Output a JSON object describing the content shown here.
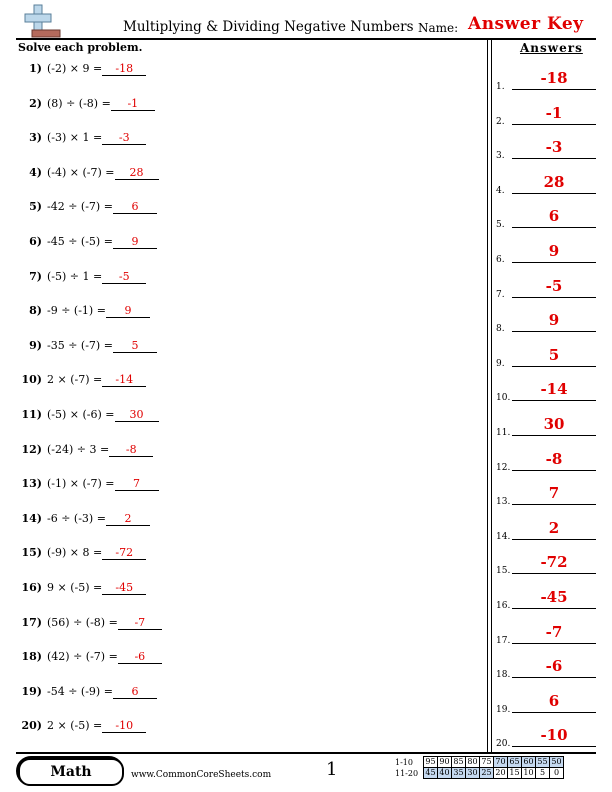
{
  "header": {
    "title": "Multiplying & Dividing Negative Numbers",
    "name_label": "Name:",
    "answer_key": "Answer Key",
    "logo_icon": "plus-minus-logo-icon"
  },
  "instructions": "Solve each problem.",
  "problems": [
    {
      "num": "1)",
      "expr": "(-2) × 9 =",
      "answer": "-18"
    },
    {
      "num": "2)",
      "expr": "(8) ÷ (-8) =",
      "answer": "-1"
    },
    {
      "num": "3)",
      "expr": "(-3) × 1 =",
      "answer": "-3"
    },
    {
      "num": "4)",
      "expr": "(-4) × (-7) =",
      "answer": "28"
    },
    {
      "num": "5)",
      "expr": "-42 ÷ (-7) =",
      "answer": "6"
    },
    {
      "num": "6)",
      "expr": "-45 ÷ (-5) =",
      "answer": "9"
    },
    {
      "num": "7)",
      "expr": "(-5) ÷ 1 =",
      "answer": "-5"
    },
    {
      "num": "8)",
      "expr": "-9 ÷ (-1) =",
      "answer": "9"
    },
    {
      "num": "9)",
      "expr": "-35 ÷ (-7) =",
      "answer": "5"
    },
    {
      "num": "10)",
      "expr": "2 × (-7) =",
      "answer": "-14"
    },
    {
      "num": "11)",
      "expr": "(-5) × (-6) =",
      "answer": "30"
    },
    {
      "num": "12)",
      "expr": "(-24) ÷ 3 =",
      "answer": "-8"
    },
    {
      "num": "13)",
      "expr": "(-1) × (-7) =",
      "answer": "7"
    },
    {
      "num": "14)",
      "expr": "-6 ÷ (-3) =",
      "answer": "2"
    },
    {
      "num": "15)",
      "expr": "(-9) × 8 =",
      "answer": "-72"
    },
    {
      "num": "16)",
      "expr": "9 × (-5) =",
      "answer": "-45"
    },
    {
      "num": "17)",
      "expr": "(56) ÷ (-8) =",
      "answer": "-7"
    },
    {
      "num": "18)",
      "expr": "(42) ÷ (-7) =",
      "answer": "-6"
    },
    {
      "num": "19)",
      "expr": "-54 ÷ (-9) =",
      "answer": "6"
    },
    {
      "num": "20)",
      "expr": "2 × (-5) =",
      "answer": "-10"
    }
  ],
  "answers_panel": {
    "title": "Answers",
    "items": [
      {
        "num": "1.",
        "value": "-18"
      },
      {
        "num": "2.",
        "value": "-1"
      },
      {
        "num": "3.",
        "value": "-3"
      },
      {
        "num": "4.",
        "value": "28"
      },
      {
        "num": "5.",
        "value": "6"
      },
      {
        "num": "6.",
        "value": "9"
      },
      {
        "num": "7.",
        "value": "-5"
      },
      {
        "num": "8.",
        "value": "9"
      },
      {
        "num": "9.",
        "value": "5"
      },
      {
        "num": "10.",
        "value": "-14"
      },
      {
        "num": "11.",
        "value": "30"
      },
      {
        "num": "12.",
        "value": "-8"
      },
      {
        "num": "13.",
        "value": "7"
      },
      {
        "num": "14.",
        "value": "2"
      },
      {
        "num": "15.",
        "value": "-72"
      },
      {
        "num": "16.",
        "value": "-45"
      },
      {
        "num": "17.",
        "value": "-7"
      },
      {
        "num": "18.",
        "value": "-6"
      },
      {
        "num": "19.",
        "value": "6"
      },
      {
        "num": "20.",
        "value": "-10"
      }
    ]
  },
  "footer": {
    "badge": "Math",
    "website": "www.CommonCoreSheets.com",
    "page_number": "1",
    "score_rows": [
      {
        "label": "1-10",
        "cells": [
          "95",
          "90",
          "85",
          "80",
          "75",
          "70",
          "65",
          "60",
          "55",
          "50"
        ]
      },
      {
        "label": "11-20",
        "cells": [
          "45",
          "40",
          "35",
          "30",
          "25",
          "20",
          "15",
          "10",
          "5",
          "0"
        ]
      }
    ]
  },
  "colors": {
    "answer": "#e00000",
    "score_highlight": "#c5d9f0"
  }
}
